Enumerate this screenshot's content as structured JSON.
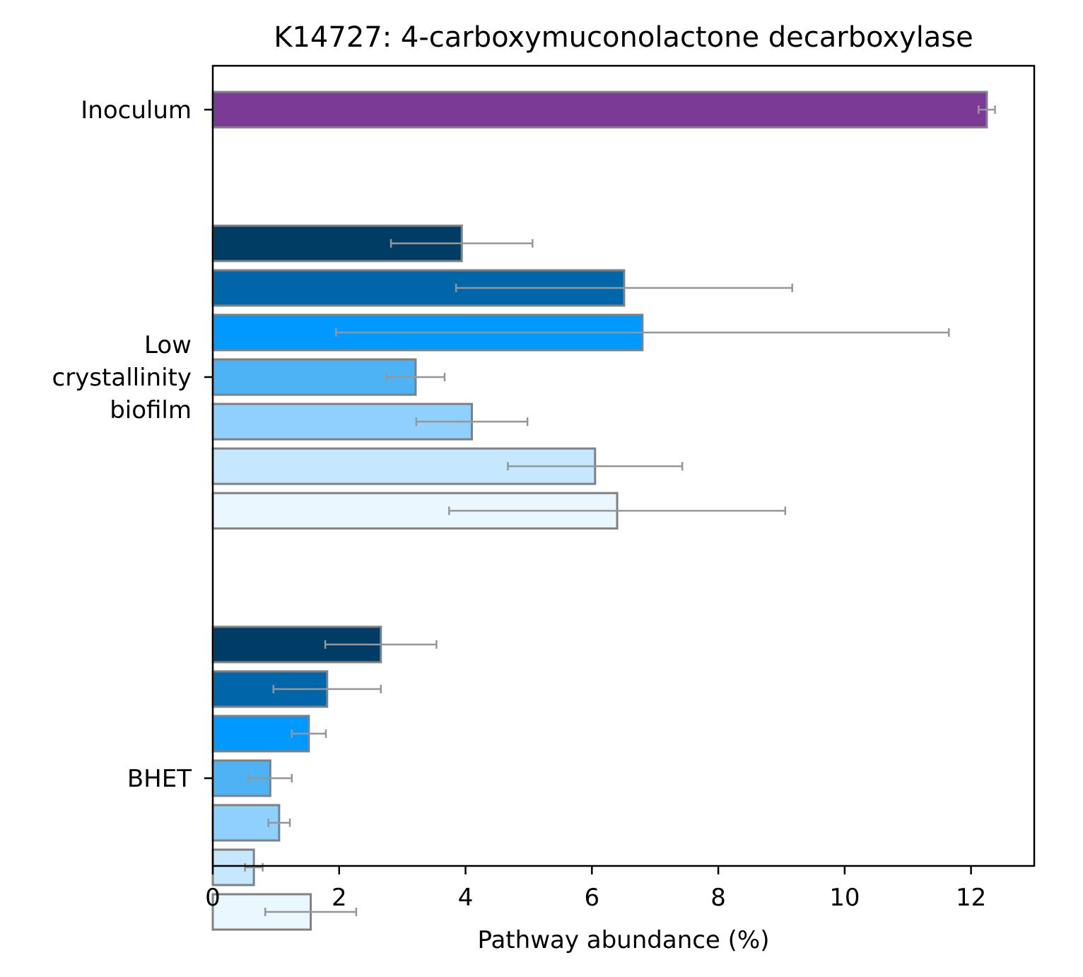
{
  "chart_data": {
    "type": "bar",
    "orientation": "horizontal",
    "title": "K14727: 4-carboxymuconolactone decarboxylase",
    "xlabel": "Pathway abundance (%)",
    "ylabel": "",
    "xlim": [
      0,
      13
    ],
    "xticks": [
      0,
      2,
      4,
      6,
      8,
      10,
      12
    ],
    "grid": false,
    "groups": [
      {
        "label": [
          "Inoculum"
        ],
        "bars": [
          {
            "value": 12.25,
            "err": 0.13,
            "color": "#7b3a96"
          }
        ]
      },
      {
        "label": [
          "Low",
          "crystallinity",
          "biofilm"
        ],
        "bars": [
          {
            "value": 3.94,
            "err": 1.12,
            "color": "#003d66"
          },
          {
            "value": 6.51,
            "err": 2.66,
            "color": "#0066aa"
          },
          {
            "value": 6.8,
            "err": 4.85,
            "color": "#0099ff"
          },
          {
            "value": 3.21,
            "err": 0.46,
            "color": "#4db3f5"
          },
          {
            "value": 4.1,
            "err": 0.88,
            "color": "#8fd0ff"
          },
          {
            "value": 6.05,
            "err": 1.38,
            "color": "#c6e8ff"
          },
          {
            "value": 6.4,
            "err": 2.66,
            "color": "#ebf7ff"
          }
        ]
      },
      {
        "label": [
          "BHET"
        ],
        "bars": [
          {
            "value": 2.66,
            "err": 0.88,
            "color": "#003d66"
          },
          {
            "value": 1.81,
            "err": 0.85,
            "color": "#0066aa"
          },
          {
            "value": 1.52,
            "err": 0.27,
            "color": "#0099ff"
          },
          {
            "value": 0.91,
            "err": 0.34,
            "color": "#4db3f5"
          },
          {
            "value": 1.05,
            "err": 0.17,
            "color": "#8fd0ff"
          },
          {
            "value": 0.65,
            "err": 0.14,
            "color": "#c6e8ff"
          },
          {
            "value": 1.55,
            "err": 0.72,
            "color": "#ebf7ff"
          }
        ]
      }
    ],
    "colors": {
      "bar_edge": "#808080",
      "error_bar": "#969696"
    }
  }
}
